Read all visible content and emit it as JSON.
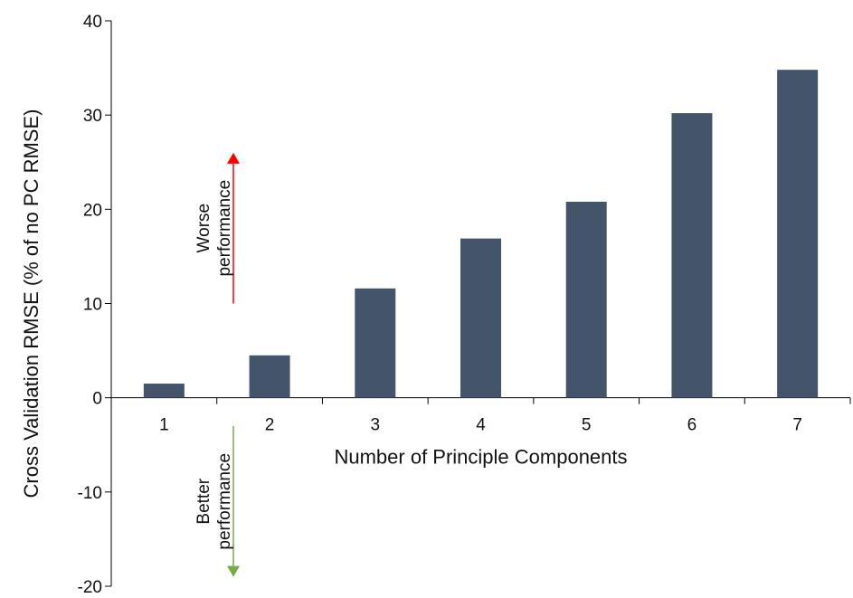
{
  "chart_data": {
    "type": "bar",
    "categories": [
      "1",
      "2",
      "3",
      "4",
      "5",
      "6",
      "7"
    ],
    "values": [
      1.5,
      4.5,
      11.6,
      16.9,
      20.8,
      30.2,
      34.8
    ],
    "xlabel": "Number of Principle Components",
    "ylabel": "Cross Validation RMSE (% of no PC RMSE)",
    "ylim": [
      -20,
      40
    ],
    "yticks": [
      40,
      30,
      20,
      10,
      0,
      -10,
      -20
    ],
    "grid": false,
    "bar_color": "#44546a",
    "annotations": [
      {
        "lines": [
          "Worse",
          "performance"
        ],
        "direction": "up",
        "color": "#ff0000",
        "from": 10,
        "to": 26
      },
      {
        "lines": [
          "Better",
          "performance"
        ],
        "direction": "down",
        "color": "#70ad47",
        "from": -3,
        "to": -19
      }
    ]
  }
}
